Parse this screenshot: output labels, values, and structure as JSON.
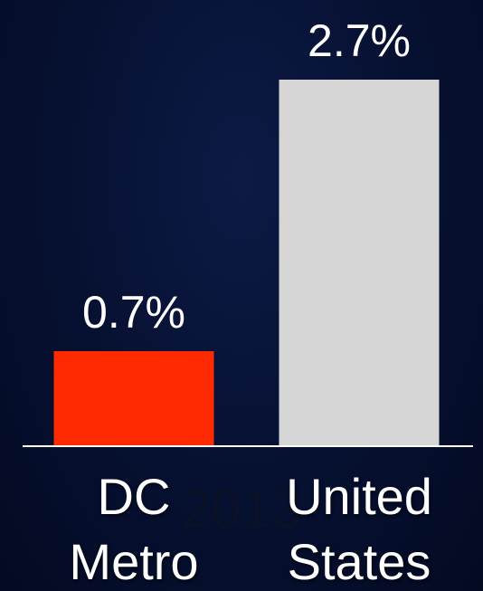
{
  "chart_data": {
    "type": "bar",
    "annotation": "2013",
    "categories": [
      "DC Metro",
      "United States"
    ],
    "values": [
      0.7,
      2.7
    ],
    "value_labels": [
      "0.7%",
      "2.7%"
    ],
    "colors": [
      "#ff2a00",
      "#d6d6d6"
    ],
    "ylim": [
      0,
      3.2
    ]
  }
}
